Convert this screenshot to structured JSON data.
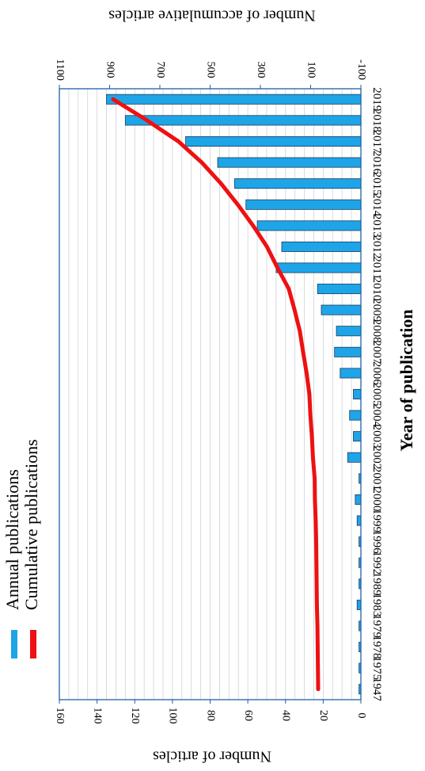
{
  "chart_data": {
    "type": "bar",
    "orientation": "horizontal",
    "title": "",
    "categories": [
      "2019",
      "2018",
      "2017",
      "2016",
      "2015",
      "2014",
      "2013",
      "2012",
      "2011",
      "2010",
      "2009",
      "2008",
      "2007",
      "2006",
      "2005",
      "2004",
      "2003",
      "2002",
      "2001",
      "2000",
      "1999",
      "1996",
      "1992",
      "1989",
      "1983",
      "1979",
      "1978",
      "1975",
      "1947"
    ],
    "xlabel": "Year of publication",
    "ylabel": "Number of articles",
    "ylabel_secondary": "Number of accumulative articles",
    "ylim": [
      0,
      160
    ],
    "ylim_secondary": [
      -100,
      1100
    ],
    "yticks": [
      "0",
      "20",
      "40",
      "60",
      "80",
      "100",
      "120",
      "140",
      "160"
    ],
    "yticks_secondary": [
      "-100",
      "100",
      "300",
      "500",
      "700",
      "900",
      "1100"
    ],
    "grid": true,
    "legend_position": "bottom-left",
    "series": [
      {
        "name": "Annual publications",
        "type": "bar",
        "axis": "primary",
        "color": "#1da5e8",
        "values": [
          135,
          125,
          93,
          76,
          67,
          61,
          55,
          42,
          45,
          23,
          21,
          13,
          14,
          11,
          4,
          6,
          4,
          7,
          1,
          3,
          2,
          1,
          1,
          1,
          2,
          1,
          1,
          1,
          1
        ]
      },
      {
        "name": "Cumulative publications",
        "type": "line",
        "axis": "secondary",
        "color": "#ee1111",
        "values": [
          886,
          751,
          626,
          533,
          457,
          390,
          329,
          274,
          232,
          187,
          164,
          143,
          130,
          116,
          105,
          101,
          95,
          91,
          84,
          83,
          80,
          78,
          77,
          76,
          75,
          73,
          72,
          71,
          70
        ]
      }
    ]
  }
}
